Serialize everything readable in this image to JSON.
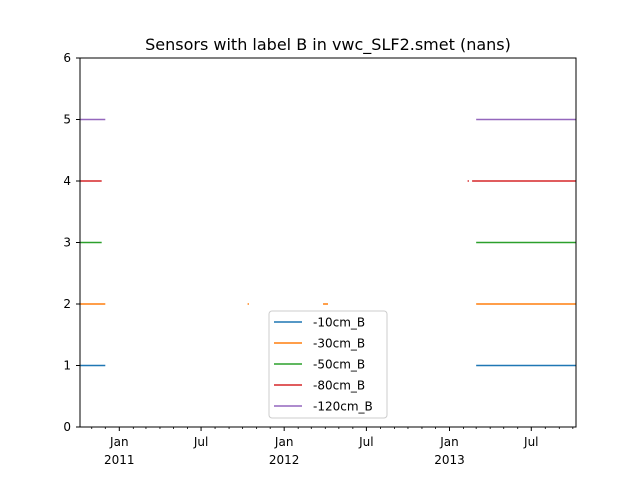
{
  "chart_data": {
    "type": "line",
    "title": "Sensors with label B in vwc_SLF2.smet (nans)",
    "xlabel": "",
    "ylabel": "",
    "xlim": [
      "2010-10-06",
      "2013-10-08"
    ],
    "ylim": [
      0,
      6
    ],
    "yticks": [
      0,
      1,
      2,
      3,
      4,
      5,
      6
    ],
    "xticks": [
      {
        "date": "2011-01-01",
        "label": "Jan",
        "sublabel": "2011"
      },
      {
        "date": "2011-07-01",
        "label": "Jul",
        "sublabel": ""
      },
      {
        "date": "2012-01-01",
        "label": "Jan",
        "sublabel": "2012"
      },
      {
        "date": "2012-07-01",
        "label": "Jul",
        "sublabel": ""
      },
      {
        "date": "2013-01-01",
        "label": "Jan",
        "sublabel": "2013"
      },
      {
        "date": "2013-07-01",
        "label": "Jul",
        "sublabel": ""
      }
    ],
    "grid": false,
    "legend_position": "bottom-center",
    "series": [
      {
        "name": "-10cm_B",
        "color": "#1f77b4",
        "value": 1,
        "segments": [
          [
            "2010-10-06",
            "2010-12-01"
          ],
          [
            "2013-03-01",
            "2013-10-08"
          ]
        ]
      },
      {
        "name": "-30cm_B",
        "color": "#ff7f0e",
        "value": 2,
        "segments": [
          [
            "2010-10-06",
            "2010-12-01"
          ],
          [
            "2011-10-12",
            "2011-10-15"
          ],
          [
            "2012-03-27",
            "2012-04-07"
          ],
          [
            "2013-03-01",
            "2013-10-08"
          ]
        ]
      },
      {
        "name": "-50cm_B",
        "color": "#2ca02c",
        "value": 3,
        "segments": [
          [
            "2010-10-06",
            "2010-11-23"
          ],
          [
            "2013-03-01",
            "2013-10-08"
          ]
        ]
      },
      {
        "name": "-80cm_B",
        "color": "#d62728",
        "value": 4,
        "segments": [
          [
            "2010-10-06",
            "2010-11-23"
          ],
          [
            "2013-02-10",
            "2013-02-13"
          ],
          [
            "2013-02-20",
            "2013-10-08"
          ]
        ]
      },
      {
        "name": "-120cm_B",
        "color": "#9467bd",
        "value": 5,
        "segments": [
          [
            "2010-10-06",
            "2010-12-01"
          ],
          [
            "2013-03-01",
            "2013-10-08"
          ]
        ]
      }
    ]
  }
}
